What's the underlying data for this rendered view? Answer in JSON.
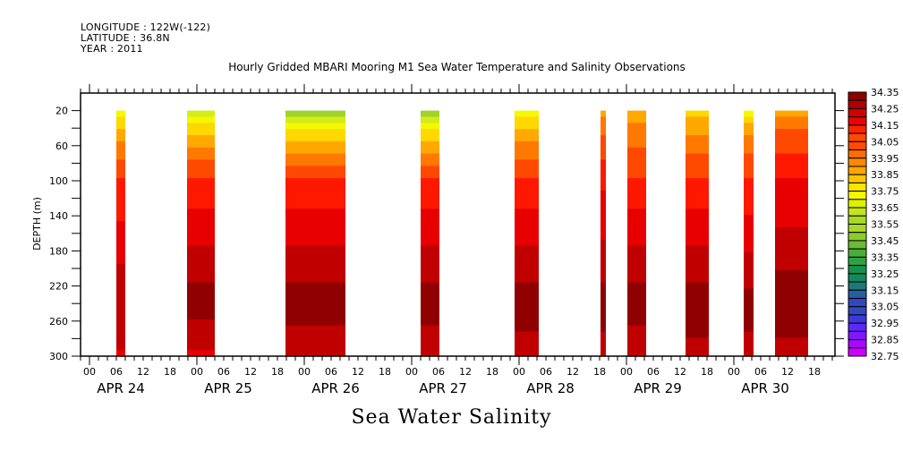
{
  "header": {
    "longitude": "LONGITUDE : 122W(-122)",
    "latitude": "LATITUDE : 36.8N",
    "year": "YEAR : 2011"
  },
  "chart_data": {
    "type": "heatmap",
    "title": "Hourly Gridded MBARI Mooring M1 Sea Water Temperature and Salinity Observations",
    "xlabel": "",
    "ylabel": "DEPTH (m)",
    "bottom_label": "Sea Water Salinity",
    "x_range_hours": [
      -2,
      166
    ],
    "x_origin": "APR 24 00:00",
    "ylim": [
      0,
      300
    ],
    "y_inverted": true,
    "y_ticks": [
      20,
      40,
      60,
      80,
      100,
      120,
      140,
      160,
      180,
      200,
      220,
      240,
      260,
      280,
      300
    ],
    "y_tick_labels": [
      "20",
      "60",
      "100",
      "140",
      "180",
      "220",
      "260",
      "300"
    ],
    "x_hour_labels": [
      "00",
      "06",
      "12",
      "18"
    ],
    "days": [
      "APR 24",
      "APR 25",
      "APR 26",
      "APR 27",
      "APR 28",
      "APR 29",
      "APR 30"
    ],
    "colorbar": {
      "levels": [
        "32.75",
        "32.85",
        "32.95",
        "33.05",
        "33.15",
        "33.25",
        "33.35",
        "33.45",
        "33.55",
        "33.65",
        "33.75",
        "33.85",
        "33.95",
        "34.05",
        "34.15",
        "34.25",
        "34.35"
      ],
      "colors": [
        "#cc00ff",
        "#a020ff",
        "#7a30ff",
        "#5038ff",
        "#3848e0",
        "#3060b8",
        "#2a7a96",
        "#1e8c6a",
        "#20a050",
        "#50b040",
        "#7cc43a",
        "#a8d830",
        "#d0ec20",
        "#f0f800",
        "#ffe000",
        "#ffc000",
        "#ffa000",
        "#ff8000",
        "#ff6a00",
        "#ff4a00",
        "#ff2800",
        "#ff0a00",
        "#e00000",
        "#c00000",
        "#a00000",
        "#860000"
      ]
    },
    "depth_range_data": [
      20,
      300
    ],
    "segments": [
      {
        "start_hour": 6,
        "end_hour": 8,
        "surface": 33.6,
        "mid": 34.05,
        "deep": 34.25,
        "bottom": 34.18
      },
      {
        "start_hour": 21.8,
        "end_hour": 28,
        "surface": 33.55,
        "mid": 34.05,
        "deep": 34.32,
        "bottom": 34.18
      },
      {
        "start_hour": 43.8,
        "end_hour": 57.2,
        "surface": 33.45,
        "mid": 34.05,
        "deep": 34.32,
        "bottom": 34.2
      },
      {
        "start_hour": 74,
        "end_hour": 78.2,
        "surface": 33.45,
        "mid": 34.05,
        "deep": 34.32,
        "bottom": 34.2
      },
      {
        "start_hour": 95,
        "end_hour": 100.4,
        "surface": 33.62,
        "mid": 34.05,
        "deep": 34.32,
        "bottom": 34.22
      },
      {
        "start_hour": 114.2,
        "end_hour": 115.4,
        "surface": 33.8,
        "mid": 34.1,
        "deep": 34.3,
        "bottom": 34.25
      },
      {
        "start_hour": 120.2,
        "end_hour": 124.4,
        "surface": 33.78,
        "mid": 34.05,
        "deep": 34.32,
        "bottom": 34.2
      },
      {
        "start_hour": 133.2,
        "end_hour": 138.4,
        "surface": 33.7,
        "mid": 34.05,
        "deep": 34.32,
        "bottom": 34.24
      },
      {
        "start_hour": 146.2,
        "end_hour": 148.4,
        "surface": 33.65,
        "mid": 34.05,
        "deep": 34.3,
        "bottom": 34.24
      },
      {
        "start_hour": 153.2,
        "end_hour": 160.6,
        "surface": 33.8,
        "mid": 34.12,
        "deep": 34.32,
        "bottom": 34.25
      }
    ]
  }
}
